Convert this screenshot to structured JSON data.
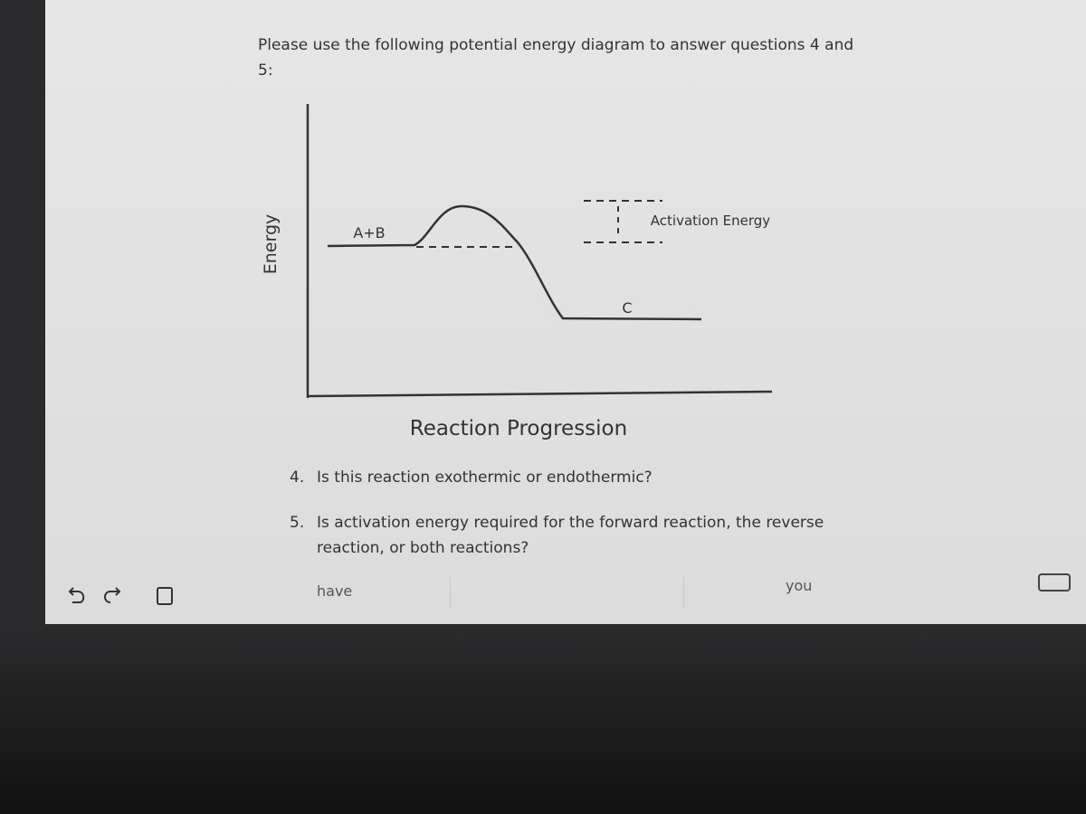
{
  "prompt": "Please use the following potential energy diagram to answer questions 4 and 5:",
  "diagram": {
    "y_axis_label": "Energy",
    "x_axis_label": "Reaction Progression",
    "reactants_label": "A+B",
    "product_label": "C",
    "annotation": "Activation Energy"
  },
  "questions": [
    {
      "number": "4.",
      "text": "Is this reaction exothermic or endothermic?"
    },
    {
      "number": "5.",
      "text": "Is activation energy required for the forward reaction, the reverse reaction, or both reactions?"
    }
  ],
  "suggestions": [
    "have",
    "you"
  ]
}
